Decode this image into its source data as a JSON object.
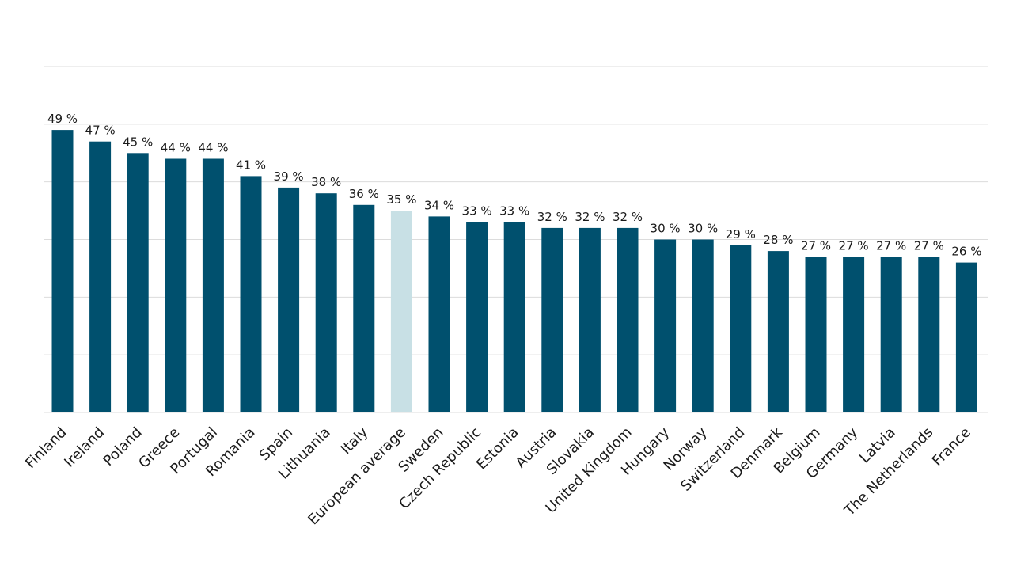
{
  "chart_data": {
    "type": "bar",
    "title": "",
    "xlabel": "",
    "ylabel": "",
    "ylim": [
      0,
      60
    ],
    "grid": true,
    "legend": "none",
    "value_suffix": " %",
    "colors": {
      "bar": "#00506e",
      "highlight": "#c8e0e5"
    },
    "highlight_category": "European average",
    "categories": [
      "Finland",
      "Ireland",
      "Poland",
      "Greece",
      "Portugal",
      "Romania",
      "Spain",
      "Lithuania",
      "Italy",
      "European average",
      "Sweden",
      "Czech Republic",
      "Estonia",
      "Austria",
      "Slovakia",
      "United Kingdom",
      "Hungary",
      "Norway",
      "Switzerland",
      "Denmark",
      "Belgium",
      "Germany",
      "Latvia",
      "The Netherlands",
      "France"
    ],
    "values": [
      49,
      47,
      45,
      44,
      44,
      41,
      39,
      38,
      36,
      35,
      34,
      33,
      33,
      32,
      32,
      32,
      30,
      30,
      29,
      28,
      27,
      27,
      27,
      27,
      26
    ]
  }
}
